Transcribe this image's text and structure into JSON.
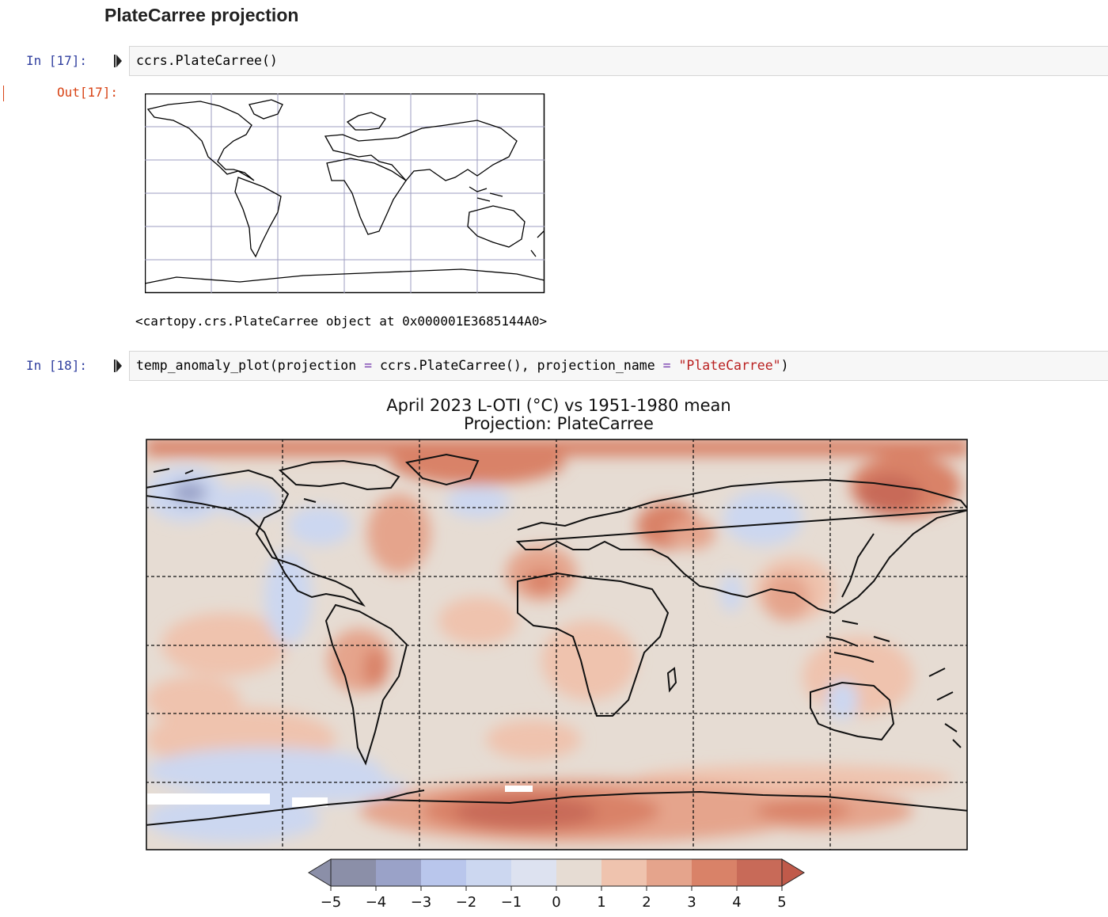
{
  "section": {
    "heading": "PlateCarree projection"
  },
  "cells": [
    {
      "prompt": "In [17]:",
      "code": "ccrs.PlateCarree()",
      "out_prompt": "Out[17]:",
      "repr": "<cartopy.crs.PlateCarree object at 0x000001E3685144A0>"
    },
    {
      "prompt": "In [18]:",
      "code_fn": "temp_anomaly_plot(projection ",
      "code_eq1": "=",
      "code_mid": " ccrs.PlateCarree(), projection_name ",
      "code_eq2": "=",
      "code_sp": " ",
      "code_str": "\"PlateCarree\"",
      "code_end": ")"
    }
  ],
  "plot": {
    "title_line1": "April 2023 L-OTI (°C) vs 1951-1980 mean",
    "title_line2": "Projection: PlateCarree"
  },
  "chart_data": {
    "type": "heatmap",
    "title": "April 2023 L-OTI (°C) vs 1951-1980 mean",
    "subtitle": "Projection: PlateCarree",
    "colorbar": {
      "ticks": [
        "−5",
        "−4",
        "−3",
        "−2",
        "−1",
        "0",
        "1",
        "2",
        "3",
        "4",
        "5"
      ],
      "levels": [
        -5,
        -4,
        -3,
        -2,
        -1,
        0,
        1,
        2,
        3,
        4,
        5
      ],
      "colors": [
        "#8b8fa8",
        "#9aa2c8",
        "#b9c6ec",
        "#ccd7f0",
        "#dde2f0",
        "#e6dcd3",
        "#efc3ae",
        "#e5a48c",
        "#d98268",
        "#c86a58"
      ],
      "extend": "both"
    },
    "gridlines": "dashed",
    "grid": true
  },
  "colors": {
    "prompt_in": "#303f9f",
    "prompt_out": "#d84315",
    "keyword_op": "#7a3fb0",
    "string": "#ba2121"
  }
}
